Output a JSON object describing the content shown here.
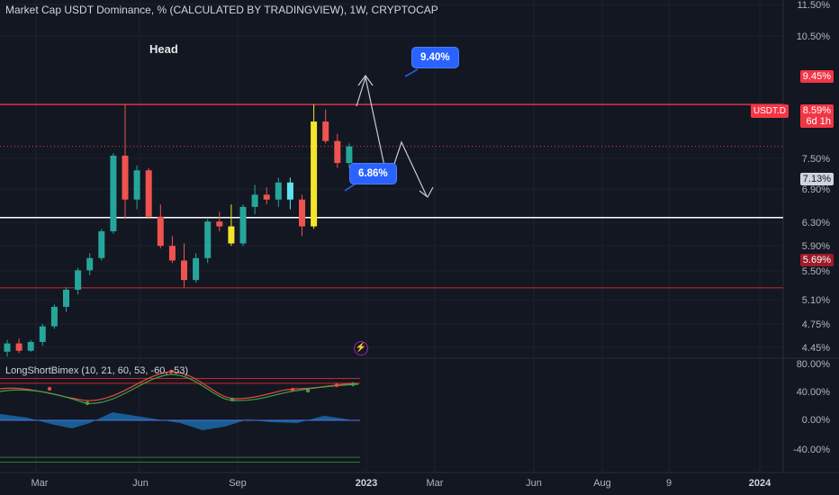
{
  "header": {
    "title": "Market Cap USDT Dominance, % (CALCULATED BY TRADINGVIEW), 1W, CRYPTOCAP",
    "annotation_head": "Head"
  },
  "indicator": {
    "label": "LongShortBimex (10, 21, 60, 53, -60, -53)",
    "axis": [
      "80.00%",
      "40.00%",
      "0.00%",
      "-40.00%"
    ]
  },
  "price_axis": [
    "11.50%",
    "10.50%",
    "7.50%",
    "6.90%",
    "6.30%",
    "5.90%",
    "5.50%",
    "5.10%",
    "4.75%",
    "4.45%"
  ],
  "tags": {
    "resistance": "9.45%",
    "current": "8.59%",
    "countdown": "6d 1h",
    "symbol": "USDT.D",
    "support_mid": "7.13%",
    "support_low": "5.69%"
  },
  "callouts": {
    "top": "9.40%",
    "bottom": "6.86%"
  },
  "time_axis": [
    "Mar",
    "Jun",
    "Sep",
    "2023",
    "Mar",
    "Jun",
    "Aug",
    "9",
    "2024"
  ],
  "colors": {
    "up": "#26a69a",
    "down": "#ef5350",
    "resistance": "#f23645",
    "support": "#ffffff",
    "low": "#b22833",
    "callout": "#2962ff"
  },
  "chart_data": {
    "type": "candlestick",
    "unit": "%",
    "candles_ohlc": [
      [
        4.38,
        4.62,
        4.28,
        4.55
      ],
      [
        4.55,
        4.65,
        4.35,
        4.4
      ],
      [
        4.4,
        4.62,
        4.38,
        4.58
      ],
      [
        4.58,
        4.95,
        4.5,
        4.9
      ],
      [
        4.9,
        5.35,
        4.85,
        5.3
      ],
      [
        5.3,
        5.7,
        5.2,
        5.65
      ],
      [
        5.65,
        6.1,
        5.55,
        6.05
      ],
      [
        6.05,
        6.4,
        5.95,
        6.3
      ],
      [
        6.3,
        6.9,
        6.25,
        6.85
      ],
      [
        6.85,
        8.45,
        6.8,
        8.4
      ],
      [
        8.4,
        9.45,
        7.1,
        7.5
      ],
      [
        7.5,
        8.2,
        7.3,
        8.1
      ],
      [
        8.1,
        8.15,
        7.1,
        7.15
      ],
      [
        7.15,
        7.4,
        6.5,
        6.55
      ],
      [
        6.55,
        6.75,
        6.2,
        6.25
      ],
      [
        6.25,
        6.6,
        5.7,
        5.85
      ],
      [
        5.85,
        6.4,
        5.8,
        6.3
      ],
      [
        6.3,
        7.1,
        6.2,
        7.05
      ],
      [
        7.05,
        7.25,
        6.85,
        6.95
      ],
      [
        6.95,
        7.4,
        6.55,
        6.6
      ],
      [
        6.6,
        7.4,
        6.55,
        7.35
      ],
      [
        7.35,
        7.8,
        7.2,
        7.6
      ],
      [
        7.6,
        7.75,
        7.4,
        7.5
      ],
      [
        7.5,
        7.95,
        7.35,
        7.85
      ],
      [
        7.85,
        7.95,
        7.3,
        7.5
      ],
      [
        7.5,
        7.6,
        6.75,
        6.95
      ],
      [
        6.95,
        9.45,
        6.9,
        9.1
      ],
      [
        9.1,
        9.35,
        8.65,
        8.7
      ],
      [
        8.7,
        8.85,
        8.15,
        8.25
      ],
      [
        8.25,
        8.65,
        8.15,
        8.59
      ]
    ],
    "levels": [
      9.45,
      7.13,
      5.69
    ],
    "indicator_range": [
      -60,
      80
    ]
  }
}
